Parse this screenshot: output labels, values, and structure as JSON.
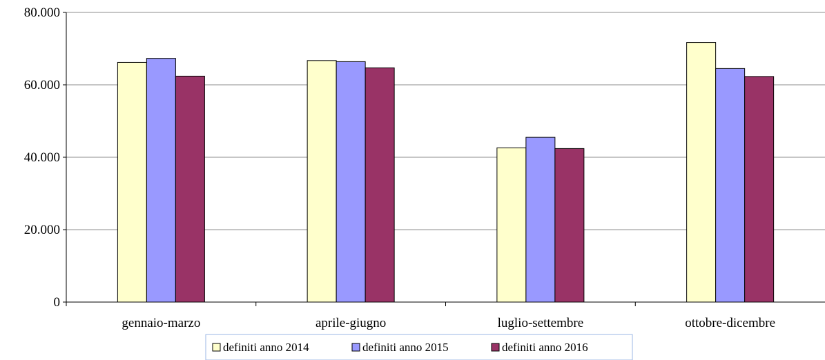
{
  "chart_data": {
    "type": "bar",
    "categories": [
      "gennaio-marzo",
      "aprile-giugno",
      "luglio-settembre",
      "ottobre-dicembre"
    ],
    "series": [
      {
        "name": "definiti anno 2014",
        "values": [
          66200,
          66700,
          42600,
          71700
        ],
        "color": "#ffffcc"
      },
      {
        "name": "definiti anno 2015",
        "values": [
          67300,
          66400,
          45500,
          64500
        ],
        "color": "#9999ff"
      },
      {
        "name": "definiti anno 2016",
        "values": [
          62400,
          64700,
          42400,
          62300
        ],
        "color": "#993366"
      }
    ],
    "ylim": [
      0,
      80000
    ],
    "yticks": [
      0,
      20000,
      40000,
      60000,
      80000
    ],
    "ytick_labels": [
      "0",
      "20.000",
      "40.000",
      "60.000",
      "80.000"
    ],
    "grid": true,
    "legend_position": "bottom",
    "title": "",
    "xlabel": "",
    "ylabel": ""
  }
}
